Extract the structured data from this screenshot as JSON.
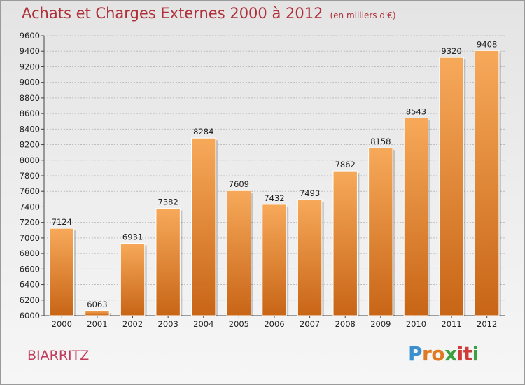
{
  "title": "Achats et Charges Externes 2000 à 2012",
  "subtitle": "(en milliers d'€)",
  "city": "BIARRITZ",
  "logo": {
    "letters": [
      "P",
      "r",
      "o",
      "x",
      "i",
      "t",
      "i"
    ],
    "colors": [
      "#3a8fd0",
      "#e07a20",
      "#e07a20",
      "#3aa040",
      "#d03a3a",
      "#d03a3a",
      "#3aa040"
    ]
  },
  "colors": {
    "bar_light": "#f7a95a",
    "bar_dark": "#c86516",
    "title": "#b0303a",
    "city": "#c03a5a"
  },
  "chart_data": {
    "type": "bar",
    "categories": [
      "2000",
      "2001",
      "2002",
      "2003",
      "2004",
      "2005",
      "2006",
      "2007",
      "2008",
      "2009",
      "2010",
      "2011",
      "2012"
    ],
    "values": [
      7124,
      6063,
      6931,
      7382,
      8284,
      7609,
      7432,
      7493,
      7862,
      8158,
      8543,
      9320,
      9408
    ],
    "ylim": [
      6000,
      9600
    ],
    "yticks": [
      6000,
      6200,
      6400,
      6600,
      6800,
      7000,
      7200,
      7400,
      7600,
      7800,
      8000,
      8200,
      8400,
      8600,
      8800,
      9000,
      9200,
      9400,
      9600
    ],
    "grid": true,
    "xlabel": "",
    "ylabel": ""
  }
}
